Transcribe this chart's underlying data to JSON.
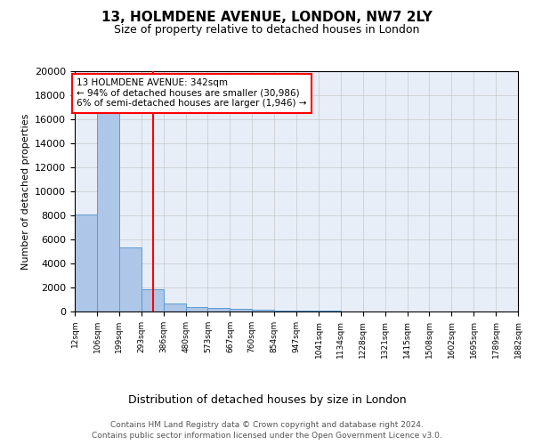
{
  "title": "13, HOLMDENE AVENUE, LONDON, NW7 2LY",
  "subtitle": "Size of property relative to detached houses in London",
  "xlabel": "Distribution of detached houses by size in London",
  "ylabel": "Number of detached properties",
  "bar_color": "#aec6e8",
  "bar_edge_color": "#5b9bd5",
  "annotation_line_color": "red",
  "property_size": 342,
  "annotation_text": "13 HOLMDENE AVENUE: 342sqm\n← 94% of detached houses are smaller (30,986)\n6% of semi-detached houses are larger (1,946) →",
  "bin_edges": [
    12,
    106,
    199,
    293,
    386,
    480,
    573,
    667,
    760,
    854,
    947,
    1041,
    1134,
    1228,
    1321,
    1415,
    1508,
    1602,
    1695,
    1789,
    1882
  ],
  "bin_heights": [
    8100,
    16500,
    5300,
    1850,
    700,
    380,
    280,
    210,
    130,
    90,
    70,
    50,
    35,
    25,
    20,
    15,
    10,
    8,
    5,
    3
  ],
  "ylim": [
    0,
    20000
  ],
  "yticks": [
    0,
    2000,
    4000,
    6000,
    8000,
    10000,
    12000,
    14000,
    16000,
    18000,
    20000
  ],
  "footer_line1": "Contains HM Land Registry data © Crown copyright and database right 2024.",
  "footer_line2": "Contains public sector information licensed under the Open Government Licence v3.0.",
  "background_color": "#e8eef8",
  "grid_color": "#c8c8c8"
}
